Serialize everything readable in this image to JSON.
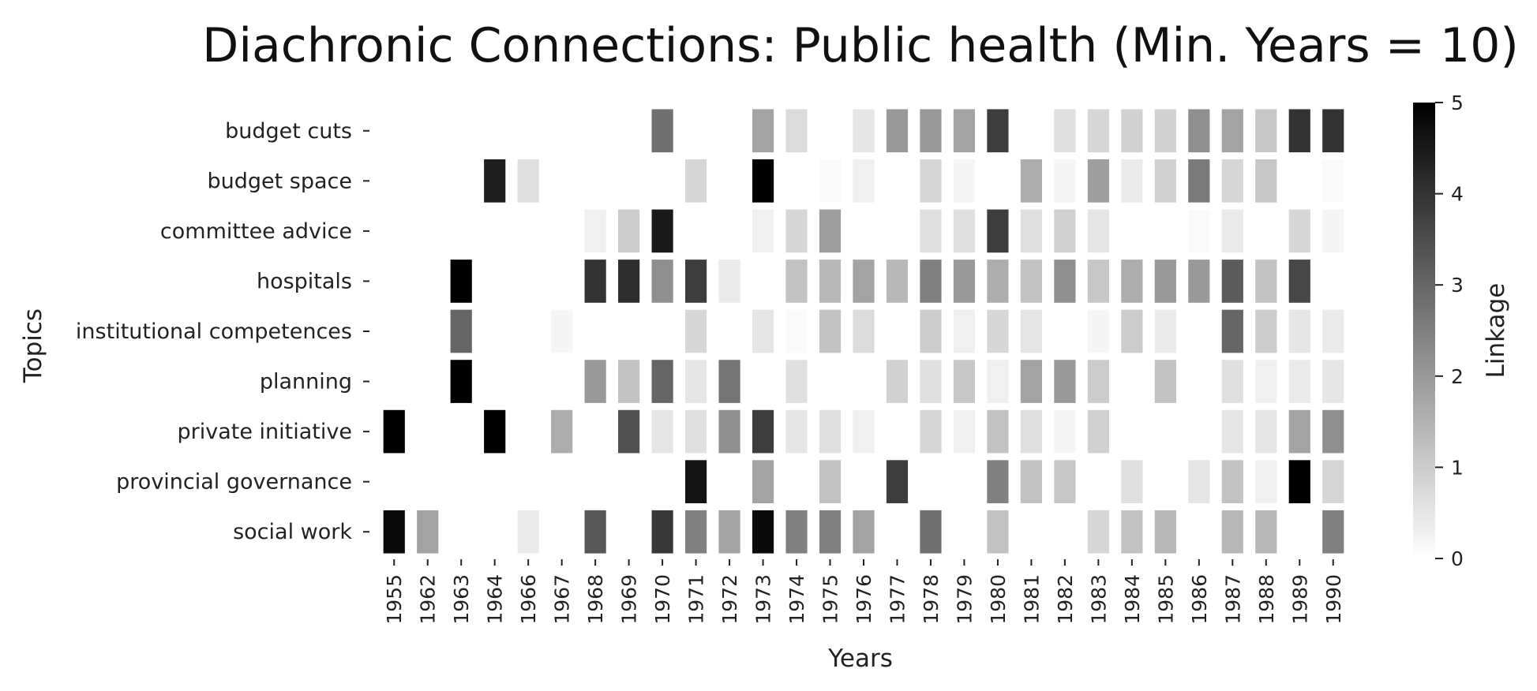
{
  "chart_data": {
    "type": "heatmap",
    "title": "Diachronic Connections: Public health (Min. Years = 10)",
    "xlabel": "Years",
    "ylabel": "Topics",
    "colorbar_label": "Linkage",
    "colorbar_range": [
      0,
      5
    ],
    "colorbar_ticks": [
      "0",
      "1",
      "2",
      "3",
      "4",
      "5"
    ],
    "colormap": [
      "#ffffff",
      "#000000"
    ],
    "x": [
      "1955",
      "1962",
      "1963",
      "1964",
      "1966",
      "1967",
      "1968",
      "1969",
      "1970",
      "1971",
      "1972",
      "1973",
      "1974",
      "1975",
      "1976",
      "1977",
      "1978",
      "1979",
      "1980",
      "1981",
      "1982",
      "1983",
      "1984",
      "1985",
      "1986",
      "1987",
      "1988",
      "1989",
      "1990"
    ],
    "y": [
      "budget cuts",
      "budget space",
      "committee advice",
      "hospitals",
      "institutional competences",
      "planning",
      "private initiative",
      "provincial governance",
      "social work"
    ],
    "values": [
      [
        null,
        null,
        null,
        null,
        null,
        null,
        null,
        null,
        2.8,
        null,
        null,
        1.8,
        0.7,
        null,
        0.5,
        2.0,
        2.0,
        1.8,
        3.8,
        null,
        0.6,
        0.8,
        0.9,
        0.9,
        2.2,
        1.8,
        1.1,
        4.0,
        4.0
      ],
      [
        null,
        null,
        null,
        4.4,
        0.6,
        null,
        null,
        null,
        null,
        0.8,
        null,
        5.0,
        null,
        0.1,
        0.3,
        null,
        0.8,
        0.2,
        null,
        1.6,
        0.2,
        1.9,
        0.4,
        0.9,
        2.6,
        0.8,
        1.1,
        null,
        0.1
      ],
      [
        null,
        null,
        null,
        null,
        null,
        null,
        0.3,
        1.0,
        4.5,
        null,
        null,
        0.3,
        0.8,
        1.9,
        null,
        null,
        0.6,
        0.6,
        3.8,
        0.6,
        0.9,
        0.5,
        null,
        null,
        0.1,
        0.4,
        null,
        0.8,
        0.2
      ],
      [
        null,
        null,
        5.0,
        null,
        null,
        null,
        4.0,
        4.1,
        2.2,
        3.8,
        0.4,
        null,
        1.2,
        1.4,
        1.8,
        1.4,
        2.5,
        2.0,
        1.6,
        1.2,
        2.2,
        1.1,
        1.6,
        2.0,
        2.0,
        3.2,
        1.2,
        3.6,
        null
      ],
      [
        null,
        null,
        3.0,
        null,
        null,
        0.2,
        null,
        null,
        null,
        0.8,
        null,
        0.5,
        0.1,
        1.2,
        0.7,
        null,
        1.0,
        0.3,
        0.8,
        0.5,
        null,
        0.2,
        1.0,
        0.4,
        null,
        3.0,
        1.0,
        0.5,
        0.4
      ],
      [
        null,
        null,
        5.0,
        null,
        null,
        null,
        2.0,
        1.2,
        3.0,
        0.5,
        2.7,
        null,
        0.6,
        null,
        null,
        0.9,
        0.6,
        1.1,
        0.3,
        1.8,
        2.0,
        1.0,
        null,
        1.2,
        null,
        0.6,
        0.3,
        0.4,
        0.5
      ],
      [
        5.0,
        null,
        null,
        5.0,
        null,
        1.6,
        null,
        3.4,
        0.5,
        0.6,
        2.2,
        3.8,
        0.5,
        0.6,
        0.3,
        null,
        0.8,
        0.3,
        1.2,
        0.6,
        0.2,
        0.9,
        null,
        null,
        null,
        0.5,
        0.5,
        1.8,
        2.2
      ],
      [
        null,
        null,
        null,
        null,
        null,
        null,
        null,
        null,
        null,
        4.6,
        null,
        1.8,
        null,
        1.2,
        null,
        3.8,
        null,
        null,
        2.5,
        1.2,
        1.1,
        null,
        0.6,
        null,
        0.5,
        1.2,
        0.3,
        5.0,
        0.8
      ],
      [
        4.8,
        1.8,
        null,
        null,
        0.4,
        null,
        3.3,
        null,
        3.9,
        2.5,
        1.8,
        4.8,
        2.5,
        2.5,
        1.8,
        null,
        2.8,
        null,
        1.2,
        null,
        null,
        0.8,
        1.2,
        1.4,
        null,
        1.4,
        1.4,
        null,
        2.5
      ]
    ]
  }
}
